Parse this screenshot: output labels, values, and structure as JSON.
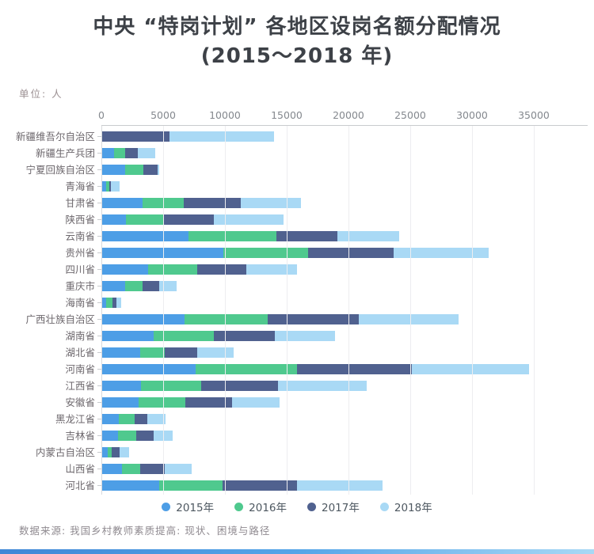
{
  "title_line1": "中央 “特岗计划” 各地区设岗名额分配情况",
  "title_line2": "(2015～2018 年)",
  "unit_label": "单位: 人",
  "footer": {
    "source_text": "数据来源: 我国乡村教师素质提高: 现状、困境与路径"
  },
  "colors": {
    "y2015": "#4D9EE6",
    "y2016": "#4FC98E",
    "y2017": "#50618F",
    "y2018": "#A9D9F5",
    "bottom_bar_start": "#3F87D6",
    "bottom_bar_end": "#A8D8F5"
  },
  "chart_data": {
    "type": "bar",
    "orientation": "horizontal",
    "stacked": true,
    "grid": true,
    "legend_position": "bottom",
    "x_ticks": [
      0,
      5000,
      10000,
      15000,
      20000,
      25000,
      30000,
      35000
    ],
    "xlim": [
      0,
      39300
    ],
    "unit": "人",
    "categories": [
      "新疆维吾尔自治区",
      "新疆生产兵团",
      "宁夏回族自治区",
      "青海省",
      "甘肃省",
      "陕西省",
      "云南省",
      "贵州省",
      "四川省",
      "重庆市",
      "海南省",
      "广西壮族自治区",
      "湖南省",
      "湖北省",
      "河南省",
      "江西省",
      "安徽省",
      "黑龙江省",
      "吉林省",
      "内蒙古自治区",
      "山西省",
      "河北省"
    ],
    "series": [
      {
        "name": "2015年",
        "color": "#4D9EE6",
        "values": [
          0,
          1000,
          1950,
          380,
          3350,
          2000,
          7050,
          9900,
          3800,
          1950,
          400,
          6700,
          4250,
          3150,
          7600,
          3200,
          3000,
          1400,
          1350,
          500,
          1650,
          4650
        ]
      },
      {
        "name": "2016年",
        "color": "#4FC98E",
        "values": [
          0,
          900,
          1500,
          270,
          3350,
          3000,
          7100,
          6850,
          3950,
          1400,
          500,
          6750,
          4900,
          2000,
          8200,
          4900,
          3800,
          1300,
          1450,
          350,
          1500,
          5150
        ]
      },
      {
        "name": "2017年",
        "color": "#50618F",
        "values": [
          5500,
          1050,
          1150,
          130,
          4600,
          4100,
          4950,
          6950,
          3950,
          1350,
          300,
          7350,
          4950,
          2650,
          9300,
          6200,
          3750,
          1050,
          1400,
          650,
          2000,
          6000
        ]
      },
      {
        "name": "2018年",
        "color": "#A9D9F5",
        "values": [
          8450,
          1400,
          100,
          730,
          4850,
          5650,
          5000,
          7700,
          4100,
          1400,
          400,
          8100,
          4900,
          2950,
          9500,
          7200,
          3850,
          1500,
          1550,
          750,
          2200,
          6950
        ]
      }
    ]
  }
}
